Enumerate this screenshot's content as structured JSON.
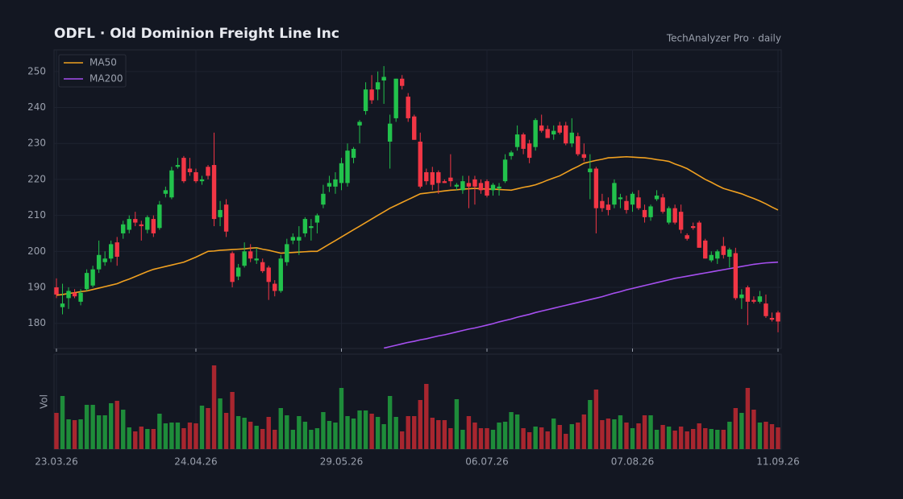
{
  "chart_data": {
    "type": "candlestick",
    "title": "ODFL  ·  Old Dominion Freight Line Inc",
    "subtitle": "TechAnalyzer Pro · daily",
    "volume_label": "Vol",
    "categories": [
      "23.03.26",
      null,
      null,
      null,
      null,
      null,
      null,
      null,
      null,
      null,
      null,
      null,
      null,
      null,
      null,
      null,
      null,
      null,
      null,
      null,
      null,
      null,
      null,
      "24.04.26",
      null,
      null,
      null,
      null,
      null,
      null,
      null,
      null,
      null,
      null,
      null,
      null,
      null,
      null,
      null,
      null,
      null,
      null,
      null,
      null,
      null,
      null,
      null,
      "29.05.26",
      null,
      null,
      null,
      null,
      null,
      null,
      null,
      null,
      null,
      null,
      null,
      null,
      null,
      null,
      null,
      null,
      null,
      null,
      null,
      null,
      null,
      null,
      null,
      "06.07.26",
      null,
      null,
      null,
      null,
      null,
      null,
      null,
      null,
      null,
      null,
      null,
      null,
      null,
      null,
      null,
      null,
      null,
      null,
      null,
      null,
      null,
      null,
      null,
      "07.08.26",
      null,
      null,
      null,
      null,
      null,
      null,
      null,
      null,
      null,
      null,
      null,
      null,
      null,
      null,
      null,
      null,
      null,
      null,
      null,
      null,
      null,
      null,
      null,
      "11.09.26"
    ],
    "open": [
      190,
      184.5,
      187,
      188.5,
      186,
      189.5,
      190.5,
      195,
      197,
      198,
      202.5,
      205,
      206,
      209,
      207.5,
      206,
      209,
      206.5,
      216,
      215,
      223.5,
      226,
      223,
      222,
      219.5,
      223.5,
      224,
      209.5,
      213,
      199.5,
      193,
      196,
      200,
      197.5,
      197,
      195.5,
      191,
      189,
      197,
      203,
      203,
      205,
      206.5,
      208,
      213,
      218,
      218,
      219,
      219,
      226,
      235,
      239,
      245,
      245,
      247.5,
      230.5,
      237,
      248,
      243,
      237.5,
      230.5,
      222,
      222,
      222,
      219.5,
      220.5,
      218,
      217,
      219,
      220,
      219,
      219.5,
      217,
      217.5,
      219.5,
      226.5,
      229,
      232.5,
      230,
      229,
      235,
      234,
      232.5,
      235,
      235,
      230,
      232,
      227,
      222,
      223,
      214,
      213,
      213,
      214.5,
      214,
      213,
      215,
      211.5,
      209.5,
      214.5,
      215,
      208,
      212,
      211,
      204.5,
      207,
      208,
      203,
      197.5,
      198,
      201.5,
      198.5,
      199.5,
      187,
      190,
      186.5,
      186,
      185.5,
      181.5,
      183
    ],
    "high": [
      192.5,
      191,
      190,
      189.5,
      189.5,
      195,
      196,
      203,
      200,
      203,
      204,
      208.5,
      210,
      211,
      208.5,
      210,
      210,
      214,
      218,
      223.5,
      226,
      226.5,
      226,
      223,
      221,
      224,
      233,
      214,
      214.5,
      200,
      196.5,
      202.5,
      202,
      201,
      198,
      196,
      192,
      199,
      203.5,
      205,
      207,
      209.5,
      209,
      210.5,
      218.5,
      221,
      222,
      226,
      230,
      229,
      236.5,
      247,
      249,
      250,
      251.5,
      238,
      248,
      249,
      244,
      238,
      233,
      223,
      223.5,
      222.5,
      220,
      227,
      219,
      221,
      221,
      221,
      220,
      220,
      219,
      219,
      227,
      228,
      235,
      233,
      231,
      237,
      238,
      235,
      235,
      236,
      236,
      237,
      233,
      230,
      227,
      223.5,
      216,
      215,
      220,
      216,
      215.5,
      216.5,
      217,
      213,
      213,
      217,
      216,
      212.5,
      213,
      213,
      205,
      208,
      208.5,
      203.5,
      200,
      200.5,
      204,
      201,
      201,
      189.5,
      190.5,
      187.5,
      189,
      188,
      183,
      183.5
    ],
    "low": [
      187,
      182.5,
      184,
      187,
      185,
      189,
      190,
      194,
      196,
      197,
      196,
      203.5,
      205,
      207,
      203,
      205,
      204,
      206,
      215,
      214.5,
      223,
      219,
      221,
      219,
      218.5,
      220,
      207,
      207,
      204,
      190,
      192,
      195.5,
      197,
      196.5,
      194,
      186.5,
      187.5,
      188.5,
      196,
      202,
      199,
      204,
      203,
      205,
      212,
      216.5,
      216,
      217,
      218,
      224.5,
      230,
      238,
      241,
      242,
      241,
      223,
      236,
      245,
      236,
      231,
      217.5,
      218.5,
      217,
      216,
      219,
      218,
      217,
      216,
      212,
      213,
      216,
      215,
      215.5,
      215.5,
      219,
      225.5,
      228,
      227,
      224.5,
      228,
      233,
      231.5,
      231,
      232.5,
      229.5,
      229,
      226.5,
      225,
      214.5,
      205,
      211,
      210,
      212,
      212,
      210.5,
      211,
      211.5,
      208,
      208.5,
      214,
      210.5,
      207.5,
      207.5,
      205,
      203,
      206,
      201,
      198,
      197,
      196.5,
      198,
      195.5,
      186.5,
      184,
      179.5,
      185.5,
      185.5,
      181.5,
      180.5,
      177.5
    ],
    "close": [
      188,
      185.5,
      189,
      187.5,
      188.5,
      194,
      195,
      199,
      198,
      202,
      198.5,
      207.5,
      209,
      208,
      207,
      209.5,
      205,
      213,
      217,
      222.5,
      224,
      219.5,
      222,
      219.5,
      220,
      221,
      209,
      211.5,
      205.5,
      191.5,
      195.5,
      200,
      198,
      198,
      194.5,
      191.5,
      189,
      198,
      202,
      204,
      204,
      209,
      207,
      210,
      216,
      219,
      220,
      224.5,
      228,
      228.5,
      236,
      245,
      242,
      247,
      248.5,
      235.5,
      248,
      246,
      237,
      231,
      218,
      219.5,
      218.5,
      219,
      219,
      219.5,
      218.5,
      219.5,
      218,
      218,
      217,
      215.5,
      218.5,
      218,
      225.5,
      227.5,
      232.5,
      228.5,
      226,
      236.5,
      233.5,
      231.5,
      233.5,
      233,
      230,
      233,
      227,
      226,
      223,
      212,
      212,
      211.5,
      219,
      215,
      211.5,
      216,
      212,
      209.5,
      212.5,
      215.5,
      211,
      212,
      208,
      206,
      203.5,
      206.5,
      201,
      198,
      199,
      200,
      199,
      200.5,
      187,
      188,
      186,
      186,
      187.5,
      182,
      181,
      180.5
    ],
    "volume": [
      45,
      66,
      37,
      36,
      37,
      55,
      55,
      42,
      42,
      57,
      60,
      49,
      27,
      22,
      28,
      25,
      25,
      44,
      32,
      33,
      33,
      26,
      33,
      32,
      54,
      51,
      104,
      63,
      45,
      71,
      41,
      39,
      34,
      29,
      25,
      40,
      24,
      51,
      42,
      24,
      41,
      34,
      24,
      26,
      46,
      35,
      33,
      76,
      41,
      38,
      48,
      48,
      44,
      40,
      31,
      66,
      40,
      22,
      41,
      41,
      61,
      81,
      39,
      36,
      36,
      26,
      62,
      24,
      41,
      33,
      26,
      26,
      24,
      33,
      34,
      46,
      43,
      26,
      21,
      28,
      27,
      22,
      38,
      30,
      19,
      31,
      33,
      43,
      61,
      74,
      36,
      38,
      37,
      42,
      33,
      26,
      32,
      42,
      42,
      24,
      30,
      28,
      23,
      28,
      22,
      25,
      32,
      26,
      25,
      24,
      24,
      34,
      51,
      45,
      76,
      49,
      33,
      34,
      31,
      27
    ],
    "series": [
      {
        "name": "MA50",
        "color": "#f0a020",
        "values": [
          187.8,
          188.0,
          188.3,
          188.5,
          188.8,
          189.0,
          189.4,
          189.8,
          190.2,
          190.6,
          191.0,
          191.7,
          192.3,
          193.0,
          193.7,
          194.4,
          195.0,
          195.4,
          195.8,
          196.2,
          196.6,
          197.0,
          197.7,
          198.4,
          199.2,
          200.0,
          200.1,
          200.3,
          200.4,
          200.5,
          200.6,
          200.7,
          200.9,
          201.0,
          200.6,
          200.3,
          199.9,
          199.5,
          199.6,
          199.7,
          199.8,
          199.9,
          200.0,
          200.0,
          201.0,
          202.0,
          203.0,
          204.0,
          205.0,
          206.0,
          207.0,
          208.0,
          209.0,
          210.0,
          211.0,
          212.0,
          212.8,
          213.6,
          214.4,
          215.2,
          216.0,
          216.2,
          216.4,
          216.6,
          216.8,
          217.0,
          217.1,
          217.3,
          217.4,
          217.5,
          217.4,
          217.3,
          217.3,
          217.2,
          217.1,
          217.0,
          217.4,
          217.8,
          218.1,
          218.5,
          219.1,
          219.8,
          220.4,
          221.0,
          221.9,
          222.8,
          223.6,
          224.5,
          224.9,
          225.3,
          225.6,
          226.0,
          226.1,
          226.2,
          226.3,
          226.2,
          226.1,
          226.0,
          225.8,
          225.5,
          225.3,
          225.0,
          224.3,
          223.7,
          223.0,
          222.0,
          221.0,
          220.0,
          219.2,
          218.3,
          217.5,
          217.0,
          216.5,
          216.0,
          215.3,
          214.7,
          214.0,
          213.2,
          212.3,
          211.5
        ]
      },
      {
        "name": "MA200",
        "color": "#a64ff0",
        "values": [
          null,
          null,
          null,
          null,
          null,
          null,
          null,
          null,
          null,
          null,
          null,
          null,
          null,
          null,
          null,
          null,
          null,
          null,
          null,
          null,
          null,
          null,
          null,
          null,
          null,
          null,
          null,
          null,
          null,
          null,
          null,
          null,
          null,
          null,
          null,
          null,
          null,
          null,
          null,
          null,
          null,
          null,
          null,
          null,
          null,
          null,
          null,
          null,
          null,
          null,
          null,
          null,
          null,
          null,
          173.1,
          173.5,
          173.9,
          174.3,
          174.7,
          175.0,
          175.4,
          175.7,
          176.1,
          176.5,
          176.8,
          177.2,
          177.6,
          178.0,
          178.4,
          178.7,
          179.1,
          179.5,
          179.9,
          180.4,
          180.8,
          181.2,
          181.7,
          182.1,
          182.5,
          183.0,
          183.4,
          183.8,
          184.2,
          184.6,
          185.0,
          185.4,
          185.8,
          186.2,
          186.6,
          187.0,
          187.4,
          187.9,
          188.4,
          188.8,
          189.3,
          189.7,
          190.1,
          190.5,
          190.9,
          191.3,
          191.7,
          192.1,
          192.5,
          192.8,
          193.1,
          193.4,
          193.7,
          194.0,
          194.3,
          194.6,
          194.9,
          195.2,
          195.5,
          195.8,
          196.1,
          196.4,
          196.6,
          196.8,
          196.9,
          197.0
        ]
      }
    ],
    "up_color": "#22c24c",
    "down_color": "#f23645",
    "volume_up_color": "#1e8c3a",
    "volume_down_color": "#a8262f",
    "ylim": [
      173,
      256
    ],
    "yticks": [
      180,
      190,
      200,
      210,
      220,
      230,
      240,
      250
    ],
    "volume_ylim": [
      0,
      118
    ],
    "grid": true,
    "legend": "upper-left"
  }
}
